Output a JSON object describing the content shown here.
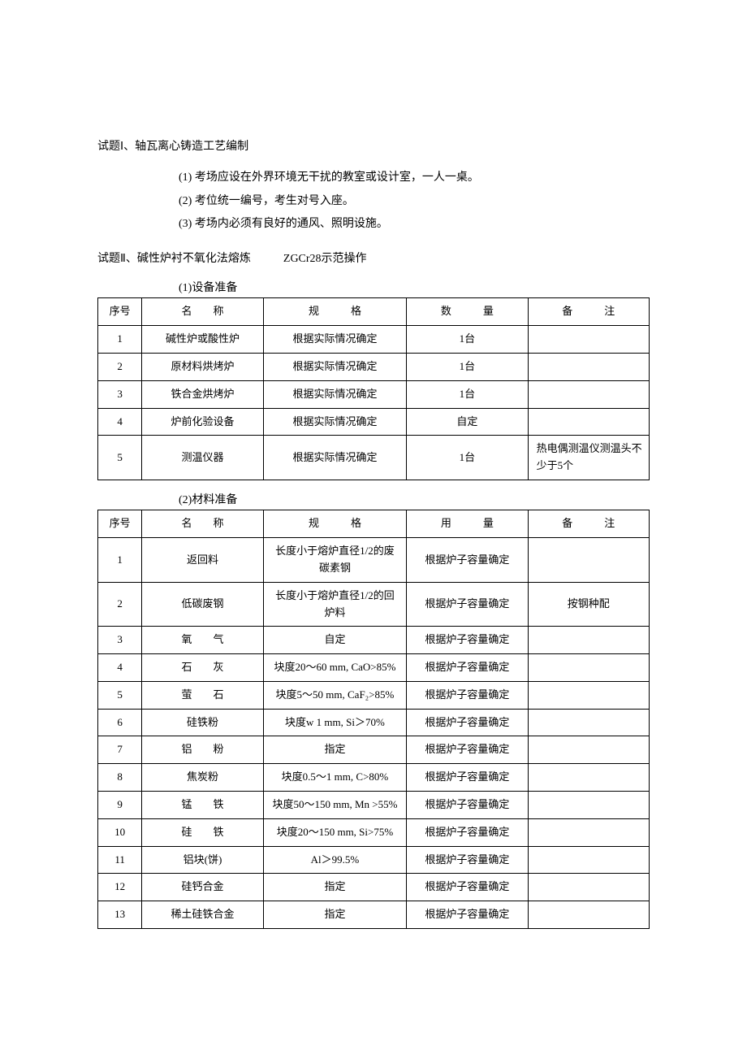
{
  "section1": {
    "title": "试题Ⅰ、轴瓦离心铸造工艺编制",
    "items": [
      "(1)  考场应设在外界环境无干扰的教室或设计室，一人一桌。",
      "(2)  考位统一编号，考生对号入座。",
      "(3)  考场内必须有良好的通风、照明设施。"
    ]
  },
  "section2": {
    "title_left": "试题Ⅱ、碱性炉衬不氧化法熔炼",
    "title_right": "ZGCr28示范操作",
    "sub1": "(1)设备准备",
    "sub2": "(2)材料准备",
    "headers_t1": {
      "c0": "序号",
      "c1": "名　　称",
      "c2": "规　　　格",
      "c3": "数　　　量",
      "c4": "备　　　注"
    },
    "headers_t2": {
      "c0": "序号",
      "c1": "名　　称",
      "c2": "规　　　格",
      "c3": "用　　　量",
      "c4": "备　　　注"
    },
    "table1": [
      {
        "idx": "1",
        "name": "碱性炉或酸性炉",
        "spec": "根据实际情况确定",
        "qty": "1台",
        "note": ""
      },
      {
        "idx": "2",
        "name": "原材料烘烤炉",
        "spec": "根据实际情况确定",
        "qty": "1台",
        "note": ""
      },
      {
        "idx": "3",
        "name": "铁合金烘烤炉",
        "spec": "根据实际情况确定",
        "qty": "1台",
        "note": ""
      },
      {
        "idx": "4",
        "name": "炉前化验设备",
        "spec": "根据实际情况确定",
        "qty": "自定",
        "note": ""
      },
      {
        "idx": "5",
        "name": "测温仪器",
        "spec": "根据实际情况确定",
        "qty": "1台",
        "note": "热电偶测温仪测温头不少于5个"
      }
    ],
    "table2": [
      {
        "idx": "1",
        "name": "返回料",
        "spec": "长度小于熔炉直径1/2的废碳素钢",
        "qty": "根据炉子容量确定",
        "note": ""
      },
      {
        "idx": "2",
        "name": "低碳废钢",
        "spec": "长度小于熔炉直径1/2的回炉料",
        "qty": "根据炉子容量确定",
        "note": "按钢种配"
      },
      {
        "idx": "3",
        "name": "氧　　气",
        "spec": "自定",
        "qty": "根据炉子容量确定",
        "note": ""
      },
      {
        "idx": "4",
        "name": "石　　灰",
        "spec": "块度20～60 mm, CaO>85%",
        "qty": "根据炉子容量确定",
        "note": ""
      },
      {
        "idx": "5",
        "name": "萤　　石",
        "spec": "块度5～50 mm, CaF₂>85%",
        "qty": "根据炉子容量确定",
        "note": ""
      },
      {
        "idx": "6",
        "name": "硅铁粉",
        "spec": "块度w 1 mm, Si＞70%",
        "qty": "根据炉子容量确定",
        "note": ""
      },
      {
        "idx": "7",
        "name": "铝　　粉",
        "spec": "指定",
        "qty": "根据炉子容量确定",
        "note": ""
      },
      {
        "idx": "8",
        "name": "焦炭粉",
        "spec": "块度0.5～1 mm, C>80%",
        "qty": "根据炉子容量确定",
        "note": ""
      },
      {
        "idx": "9",
        "name": "锰　　铁",
        "spec": "块度50～150 mm, Mn >55%",
        "qty": "根据炉子容量确定",
        "note": ""
      },
      {
        "idx": "10",
        "name": "硅　　铁",
        "spec": "块度20～150 mm, Si>75%",
        "qty": "根据炉子容量确定",
        "note": ""
      },
      {
        "idx": "11",
        "name": "铝块(饼)",
        "spec": "Al＞99.5%",
        "qty": "根据炉子容量确定",
        "note": ""
      },
      {
        "idx": "12",
        "name": "硅钙合金",
        "spec": "指定",
        "qty": "根据炉子容量确定",
        "note": ""
      },
      {
        "idx": "13",
        "name": "稀土硅铁合金",
        "spec": "指定",
        "qty": "根据炉子容量确定",
        "note": ""
      }
    ]
  }
}
